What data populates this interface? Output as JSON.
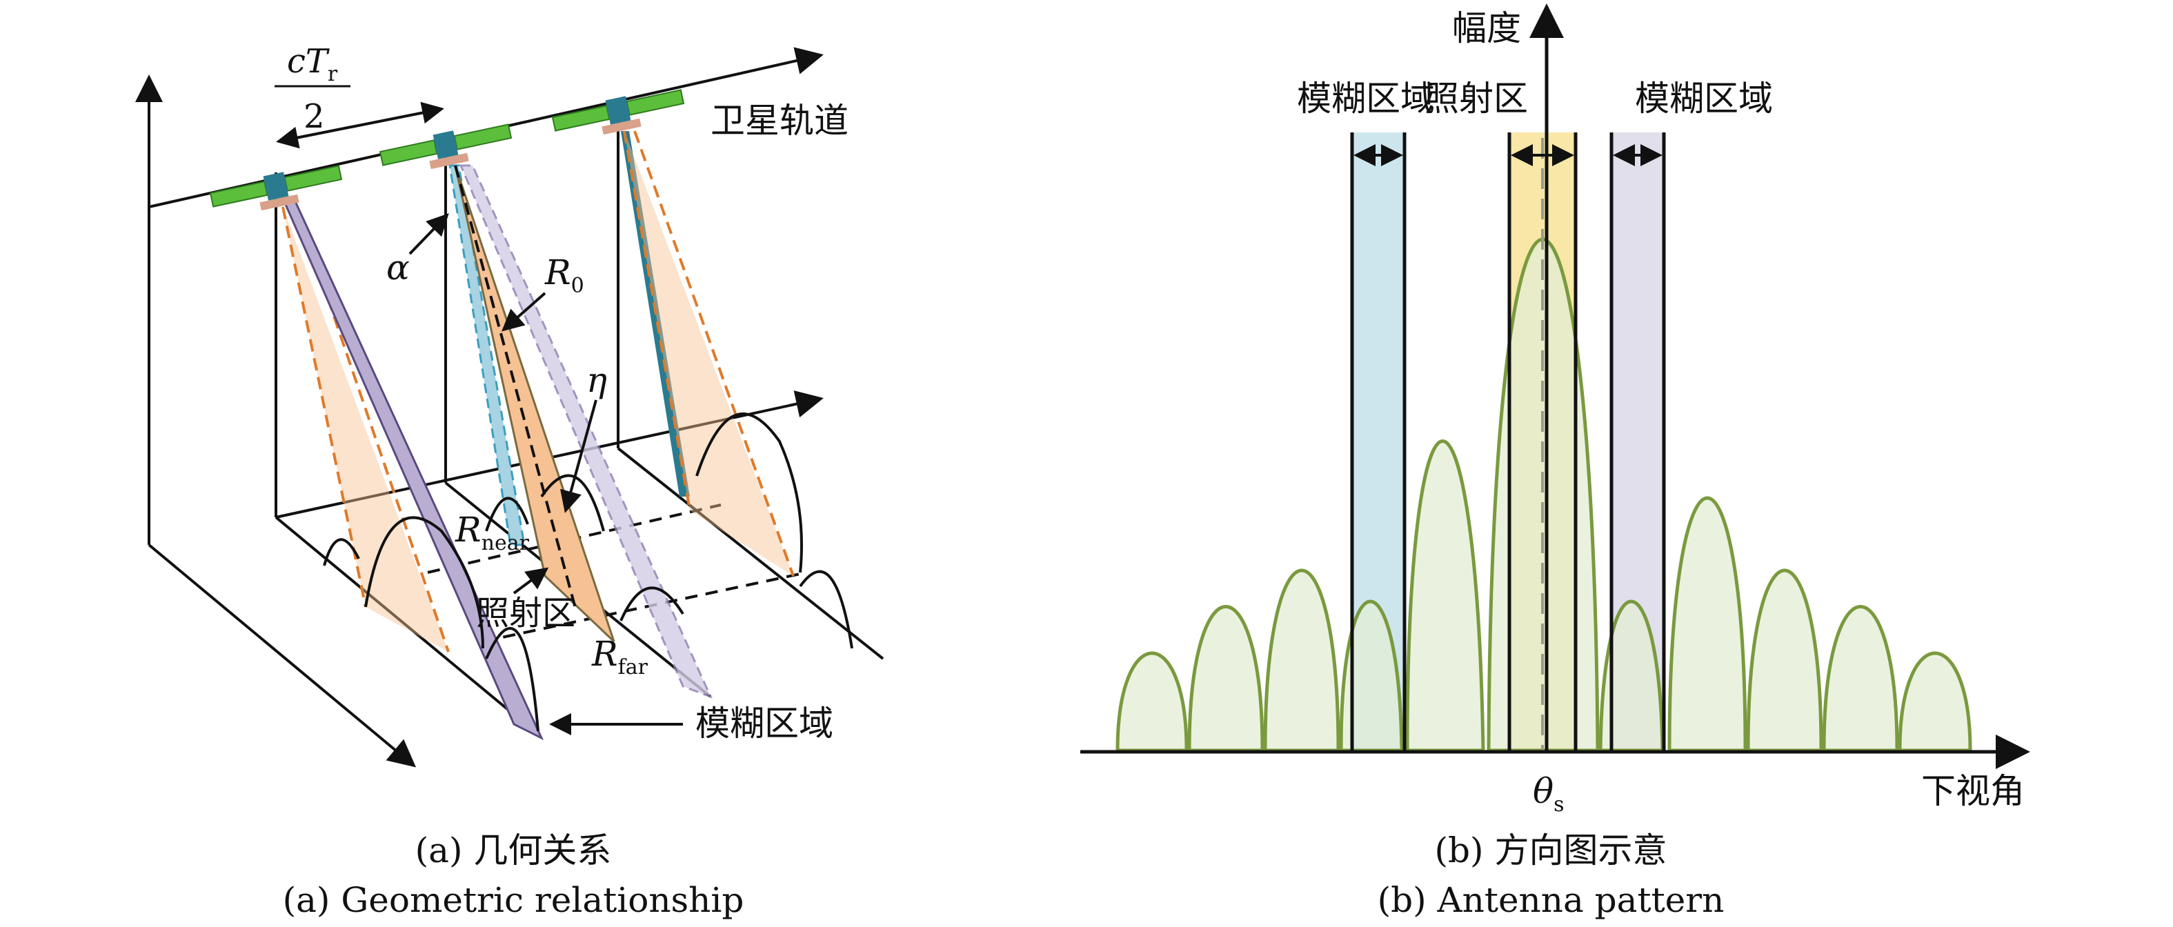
{
  "panel_a": {
    "label_cTr": "cT",
    "label_r_sub": "r",
    "label_two": "2",
    "orbit_label": "卫星轨道",
    "alpha": "α",
    "R0": "R",
    "R0_sub": "0",
    "eta": "η",
    "Rnear": "R",
    "Rnear_sub": "near",
    "illum_label": "照射区",
    "Rfar": "R",
    "Rfar_sub": "far",
    "ambiguity_label": "模糊区域",
    "caption_cn": "(a) 几何关系",
    "caption_en": "(a) Geometric relationship"
  },
  "panel_b": {
    "y_axis_label": "幅度",
    "ambiguity_left": "模糊区域",
    "illum_label": "照射区",
    "ambiguity_right": "模糊区域",
    "theta": "θ",
    "theta_sub": "s",
    "x_axis_label": "下视角",
    "caption_cn": "(b) 方向图示意",
    "caption_en": "(b) Antenna pattern"
  },
  "colors": {
    "lobe_fill": "#e3edd4",
    "lobe_stroke": "#7a9a3e",
    "blue_zone": "#cde6ee",
    "yellow_zone": "#f8e7a6",
    "purple_zone": "#e1dfeb",
    "orange_beam": "#f6c193",
    "purple_beam": "#b9aed2",
    "teal_beam": "#2a7b90",
    "satellite_green": "#5cbf3c"
  }
}
